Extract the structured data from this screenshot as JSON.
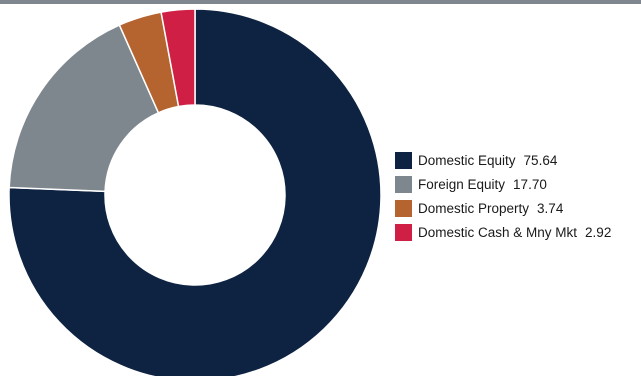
{
  "chart_data": {
    "type": "pie",
    "donut": true,
    "categories": [
      "Domestic Equity",
      "Foreign Equity",
      "Domestic Property",
      "Domestic Cash & Mny Mkt"
    ],
    "values": [
      75.64,
      17.7,
      3.74,
      2.92
    ],
    "value_labels": [
      "75.64",
      "17.70",
      "3.74",
      "2.92"
    ],
    "colors": [
      "#0e2342",
      "#7f878e",
      "#b5632f",
      "#d01f44"
    ],
    "start_angle": "12 o'clock",
    "direction": "clockwise",
    "legend_position": "right",
    "title": ""
  }
}
